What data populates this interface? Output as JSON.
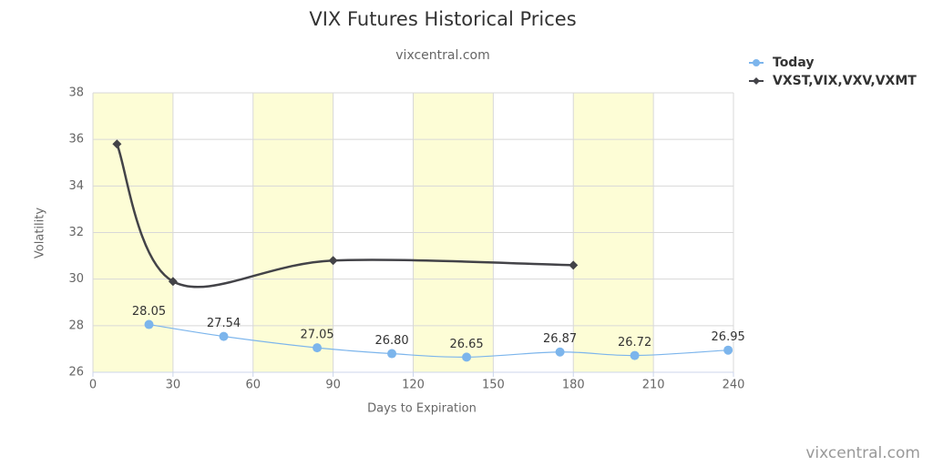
{
  "chart_data": {
    "type": "line",
    "title": "VIX Futures Historical Prices",
    "subtitle": "vixcentral.com",
    "credit": "vixcentral.com",
    "x_label": "Days to Expiration",
    "y_label": "Volatility",
    "xlim": [
      0,
      240
    ],
    "xticks": [
      0,
      30,
      60,
      90,
      120,
      150,
      180,
      210,
      240
    ],
    "ylim": [
      26,
      38
    ],
    "yticks": [
      26,
      28,
      30,
      32,
      34,
      36,
      38
    ],
    "grid": true,
    "legend": "top-right",
    "shaded_bands": [
      [
        0,
        30
      ],
      [
        60,
        90
      ],
      [
        120,
        150
      ],
      [
        180,
        210
      ]
    ],
    "band_color": "#fdfdd6",
    "series": [
      {
        "name": "Today",
        "color": "#7cb5ec",
        "marker": "circle",
        "x": [
          21,
          49,
          84,
          112,
          140,
          175,
          203,
          238
        ],
        "values": [
          28.05,
          27.54,
          27.05,
          26.8,
          26.65,
          26.87,
          26.72,
          26.95
        ],
        "value_labels": [
          "28.05",
          "27.54",
          "27.05",
          "26.80",
          "26.65",
          "26.87",
          "26.72",
          "26.95"
        ]
      },
      {
        "name": "VXST,VIX,VXV,VXMT",
        "color": "#434348",
        "marker": "diamond",
        "x": [
          9,
          30,
          90,
          180
        ],
        "values": [
          35.8,
          29.9,
          30.8,
          30.6
        ]
      }
    ]
  }
}
